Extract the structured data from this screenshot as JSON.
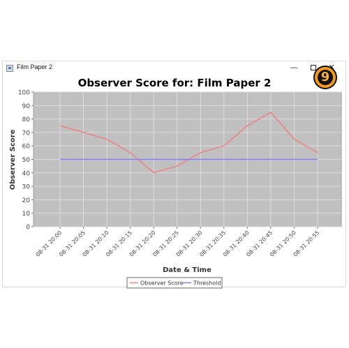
{
  "window": {
    "title": "Film Paper 2",
    "controls": {
      "minimize": "—",
      "close": "✕"
    }
  },
  "badge": {
    "number": "9"
  },
  "chart_data": {
    "type": "line",
    "title": "Observer Score for: Film Paper 2",
    "xlabel": "Date & Time",
    "ylabel": "Observer Score",
    "ylim": [
      0,
      100
    ],
    "y_ticks": [
      0,
      10,
      20,
      30,
      40,
      50,
      60,
      70,
      80,
      90,
      100
    ],
    "categories": [
      "08-31 20:00",
      "08-31 20:05",
      "08-31 20:10",
      "08-31 20:15",
      "08-31 20:20",
      "08-31 20:25",
      "08-31 20:30",
      "08-31 20:35",
      "08-31 20:40",
      "08-31 20:45",
      "08-31 20:50",
      "08-31 20:55"
    ],
    "series": [
      {
        "name": "Observer Score",
        "color": "#f08080",
        "values": [
          75,
          70,
          65,
          55,
          40,
          45,
          55,
          60,
          75,
          85,
          65,
          55
        ]
      },
      {
        "name": "Threshold",
        "color": "#8080ff",
        "values": [
          50,
          50,
          50,
          50,
          50,
          50,
          50,
          50,
          50,
          50,
          50,
          50
        ]
      }
    ],
    "grid": true,
    "legend_position": "bottom",
    "plot_background": "#c0c0c0"
  }
}
